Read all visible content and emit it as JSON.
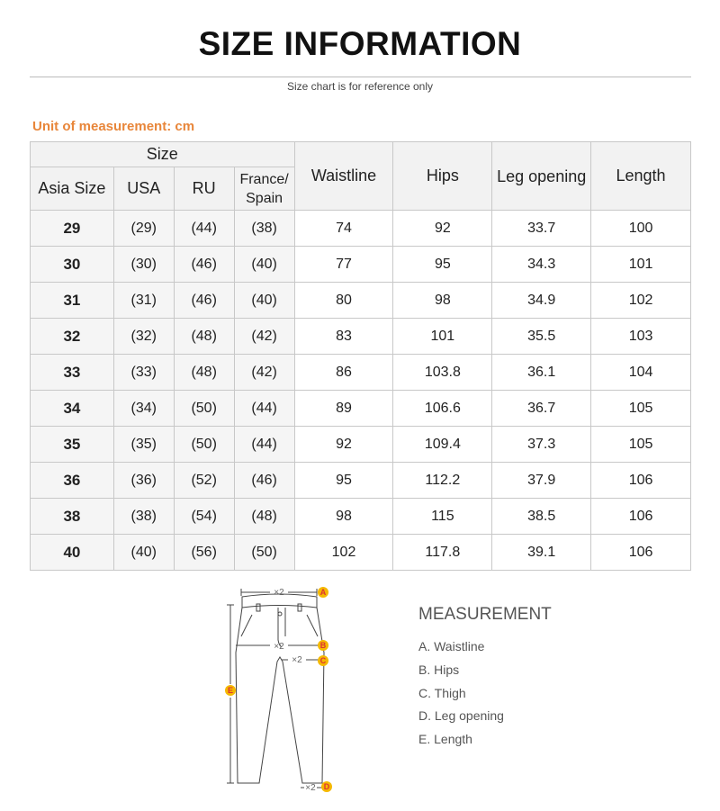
{
  "title": "SIZE INFORMATION",
  "subtitle": "Size chart is for reference only",
  "unit": "Unit of measurement: cm",
  "table": {
    "group_header": "Size",
    "headers": [
      "Asia Size",
      "USA",
      "RU",
      "France/ Spain",
      "Waistline",
      "Hips",
      "Leg opening",
      "Length"
    ],
    "rows": [
      [
        "29",
        "(29)",
        "(44)",
        "(38)",
        "74",
        "92",
        "33.7",
        "100"
      ],
      [
        "30",
        "(30)",
        "(46)",
        "(40)",
        "77",
        "95",
        "34.3",
        "101"
      ],
      [
        "31",
        "(31)",
        "(46)",
        "(40)",
        "80",
        "98",
        "34.9",
        "102"
      ],
      [
        "32",
        "(32)",
        "(48)",
        "(42)",
        "83",
        "101",
        "35.5",
        "103"
      ],
      [
        "33",
        "(33)",
        "(48)",
        "(42)",
        "86",
        "103.8",
        "36.1",
        "104"
      ],
      [
        "34",
        "(34)",
        "(50)",
        "(44)",
        "89",
        "106.6",
        "36.7",
        "105"
      ],
      [
        "35",
        "(35)",
        "(50)",
        "(44)",
        "92",
        "109.4",
        "37.3",
        "105"
      ],
      [
        "36",
        "(36)",
        "(52)",
        "(46)",
        "95",
        "112.2",
        "37.9",
        "106"
      ],
      [
        "38",
        "(38)",
        "(54)",
        "(48)",
        "98",
        "115",
        "38.5",
        "106"
      ],
      [
        "40",
        "(40)",
        "(56)",
        "(50)",
        "102",
        "117.8",
        "39.1",
        "106"
      ]
    ]
  },
  "diagram": {
    "multiplier": "×2",
    "markers": [
      "A",
      "B",
      "C",
      "D",
      "E"
    ],
    "marker_color": "#f5b800"
  },
  "measurement": {
    "title": "MEASUREMENT",
    "items": [
      "A. Waistline",
      "B. Hips",
      "C. Thigh",
      "D. Leg opening",
      "E. Length"
    ]
  },
  "accent_color": "#e8863a"
}
